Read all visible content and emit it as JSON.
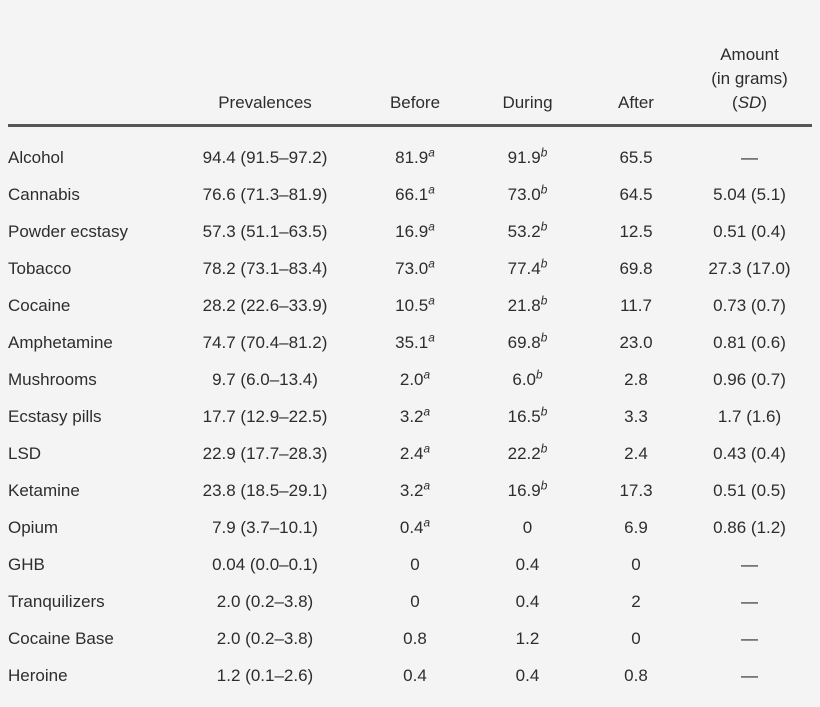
{
  "colors": {
    "background": "#f4f4f4",
    "text": "#2d2d2d",
    "header_rule": "#565656"
  },
  "header": {
    "substance": "",
    "prevalences": "Prevalences",
    "before": "Before",
    "during": "During",
    "after": "After",
    "amount": {
      "line1": "Amount",
      "line2": "(in grams)",
      "sd_open": "(",
      "sd": "SD",
      "sd_close": ")"
    }
  },
  "rows": [
    {
      "substance": "Alcohol",
      "prevalence": "94.4 (91.5–97.2)",
      "before": "81.9",
      "before_sup": "a",
      "during": "91.9",
      "during_sup": "b",
      "after": "65.5",
      "amount": "—"
    },
    {
      "substance": "Cannabis",
      "prevalence": "76.6 (71.3–81.9)",
      "before": "66.1",
      "before_sup": "a",
      "during": "73.0",
      "during_sup": "b",
      "after": "64.5",
      "amount": "5.04 (5.1)"
    },
    {
      "substance": "Powder ecstasy",
      "prevalence": "57.3 (51.1–63.5)",
      "before": "16.9",
      "before_sup": "a",
      "during": "53.2",
      "during_sup": "b",
      "after": "12.5",
      "amount": "0.51 (0.4)"
    },
    {
      "substance": "Tobacco",
      "prevalence": "78.2 (73.1–83.4)",
      "before": "73.0",
      "before_sup": "a",
      "during": "77.4",
      "during_sup": "b",
      "after": "69.8",
      "amount": "27.3 (17.0)"
    },
    {
      "substance": "Cocaine",
      "prevalence": "28.2 (22.6–33.9)",
      "before": "10.5",
      "before_sup": "a",
      "during": "21.8",
      "during_sup": "b",
      "after": "11.7",
      "amount": "0.73 (0.7)"
    },
    {
      "substance": "Amphetamine",
      "prevalence": "74.7 (70.4–81.2)",
      "before": "35.1",
      "before_sup": "a",
      "during": "69.8",
      "during_sup": "b",
      "after": "23.0",
      "amount": "0.81 (0.6)"
    },
    {
      "substance": "Mushrooms",
      "prevalence": "9.7 (6.0–13.4)",
      "before": "2.0",
      "before_sup": "a",
      "during": "6.0",
      "during_sup": "b",
      "after": "2.8",
      "amount": "0.96 (0.7)"
    },
    {
      "substance": "Ecstasy pills",
      "prevalence": "17.7 (12.9–22.5)",
      "before": "3.2",
      "before_sup": "a",
      "during": "16.5",
      "during_sup": "b",
      "after": "3.3",
      "amount": "1.7 (1.6)"
    },
    {
      "substance": "LSD",
      "prevalence": "22.9 (17.7–28.3)",
      "before": "2.4",
      "before_sup": "a",
      "during": "22.2",
      "during_sup": "b",
      "after": "2.4",
      "amount": "0.43 (0.4)"
    },
    {
      "substance": "Ketamine",
      "prevalence": "23.8 (18.5–29.1)",
      "before": "3.2",
      "before_sup": "a",
      "during": "16.9",
      "during_sup": "b",
      "after": "17.3",
      "amount": "0.51 (0.5)"
    },
    {
      "substance": "Opium",
      "prevalence": "7.9 (3.7–10.1)",
      "before": "0.4",
      "before_sup": "a",
      "during": "0",
      "during_sup": "",
      "after": "6.9",
      "amount": "0.86 (1.2)"
    },
    {
      "substance": "GHB",
      "prevalence": "0.04 (0.0–0.1)",
      "before": "0",
      "before_sup": "",
      "during": "0.4",
      "during_sup": "",
      "after": "0",
      "amount": "—"
    },
    {
      "substance": "Tranquilizers",
      "prevalence": "2.0 (0.2–3.8)",
      "before": "0",
      "before_sup": "",
      "during": "0.4",
      "during_sup": "",
      "after": "2",
      "amount": "—"
    },
    {
      "substance": "Cocaine Base",
      "prevalence": "2.0 (0.2–3.8)",
      "before": "0.8",
      "before_sup": "",
      "during": "1.2",
      "during_sup": "",
      "after": "0",
      "amount": "—"
    },
    {
      "substance": "Heroine",
      "prevalence": "1.2 (0.1–2.6)",
      "before": "0.4",
      "before_sup": "",
      "during": "0.4",
      "during_sup": "",
      "after": "0.8",
      "amount": "—"
    }
  ]
}
